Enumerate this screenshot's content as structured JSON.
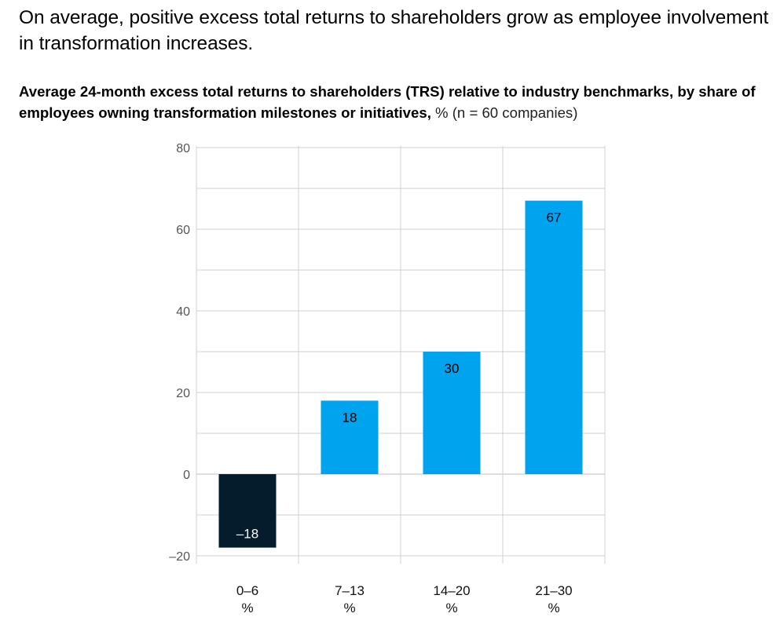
{
  "headline": "On average, positive excess total returns to shareholders grow as employee involvement in transformation increases.",
  "subtitle": {
    "bold": "Average 24-month excess total returns to shareholders (TRS) relative to industry benchmarks, by share of employees owning transformation milestones or initiatives,",
    "light": " % (n = 60 companies)"
  },
  "colors": {
    "positive_bar": "#00A3EE",
    "negative_bar": "#051C2C",
    "grid": "#D0D0D0",
    "axis_text": "#555555"
  },
  "chart_data": {
    "type": "bar",
    "title": "Average 24-month excess total returns to shareholders (TRS) relative to industry benchmarks",
    "xlabel": "",
    "ylabel": "",
    "categories": [
      "0–6\n%",
      "7–13\n%",
      "14–20\n%",
      "21–30\n%"
    ],
    "values": [
      -18,
      18,
      30,
      67
    ],
    "value_labels": [
      "–18",
      "18",
      "30",
      "67"
    ],
    "ylim": [
      -20,
      80
    ],
    "yticks": [
      -20,
      0,
      20,
      40,
      60,
      80
    ],
    "ytick_labels": [
      "–20",
      "0",
      "20",
      "40",
      "60",
      "80"
    ],
    "grid": true
  }
}
